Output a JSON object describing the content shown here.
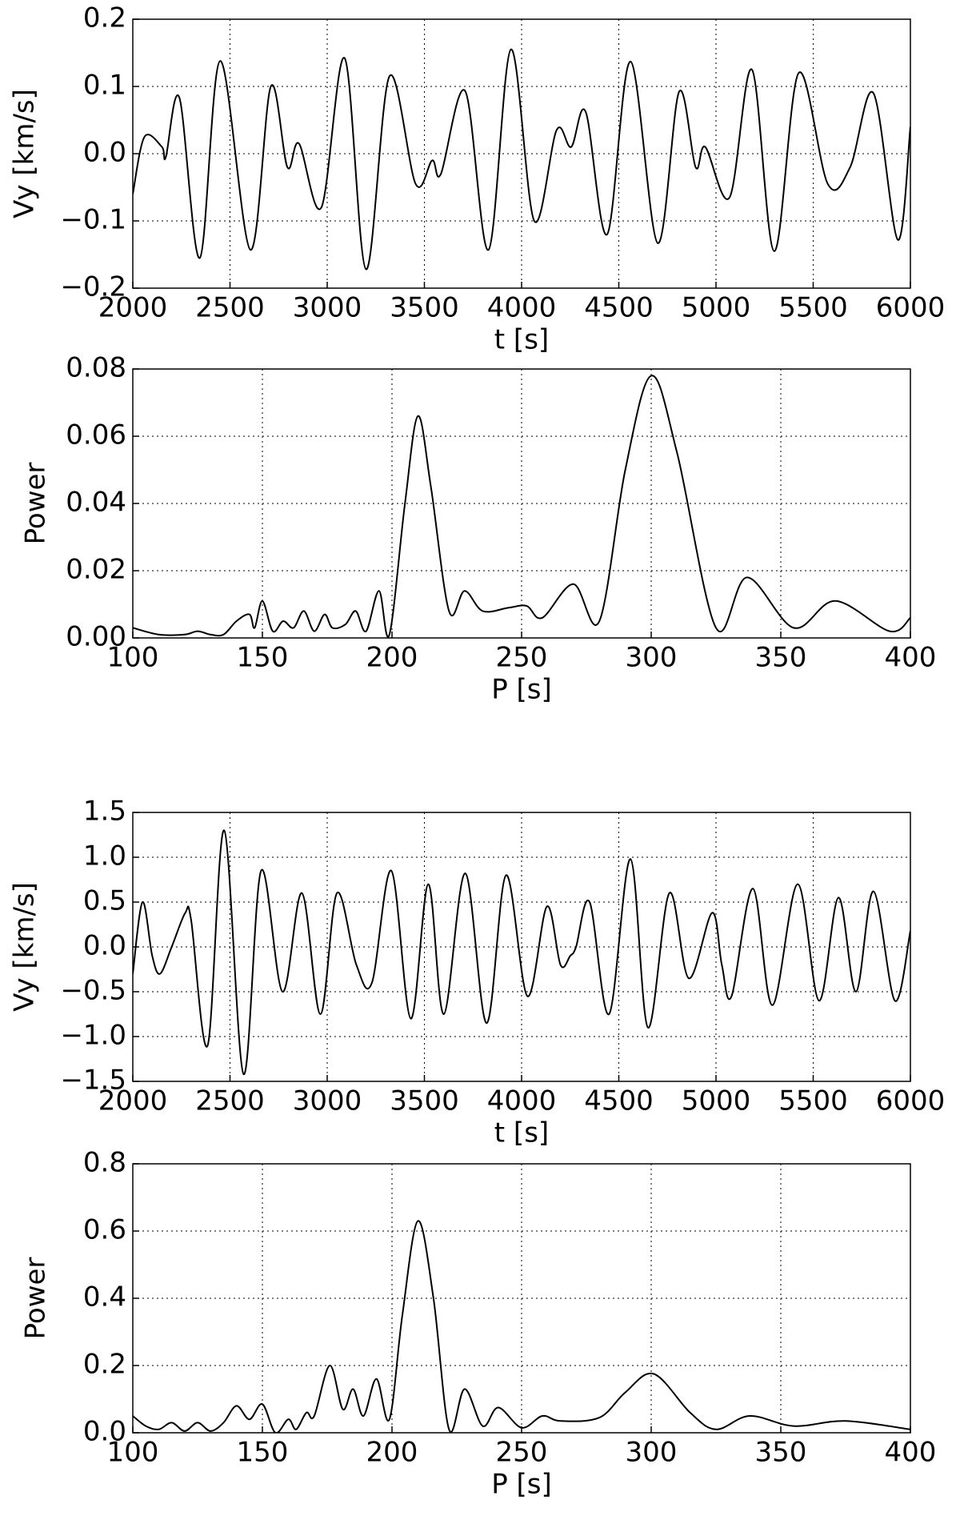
{
  "chart_data": [
    {
      "type": "line",
      "xlabel": "t [s]",
      "ylabel": "Vy [km/s]",
      "color": "#000000",
      "grid": true,
      "xlim": [
        2000,
        6000
      ],
      "ylim": [
        -0.2,
        0.2
      ],
      "xticks": [
        2000,
        2500,
        3000,
        3500,
        4000,
        4500,
        5000,
        5500,
        6000
      ],
      "yticks": [
        {
          "value": -0.2,
          "label": "−0.2"
        },
        {
          "value": -0.1,
          "label": "−0.1"
        },
        {
          "value": 0,
          "label": "0.0"
        },
        0.1,
        0.2
      ],
      "x": [
        2000,
        2060,
        2150,
        2170,
        2240,
        2345,
        2450,
        2605,
        2710,
        2795,
        2855,
        2970,
        3090,
        3200,
        3320,
        3455,
        3540,
        3585,
        3710,
        3830,
        3945,
        4065,
        4180,
        4255,
        4330,
        4440,
        4560,
        4700,
        4810,
        4895,
        4945,
        5070,
        5185,
        5300,
        5425,
        5575,
        5690,
        5810,
        5935,
        6000
      ],
      "values": [
        -0.06,
        0.025,
        0.01,
        -0.005,
        0.083,
        -0.155,
        0.138,
        -0.143,
        0.1,
        -0.02,
        0.015,
        -0.08,
        0.142,
        -0.172,
        0.115,
        -0.045,
        -0.01,
        -0.03,
        0.093,
        -0.143,
        0.155,
        -0.1,
        0.035,
        0.01,
        0.062,
        -0.12,
        0.137,
        -0.133,
        0.092,
        -0.02,
        0.01,
        -0.065,
        0.125,
        -0.145,
        0.12,
        -0.045,
        -0.02,
        0.09,
        -0.128,
        0.04
      ]
    },
    {
      "type": "line",
      "xlabel": "P [s]",
      "ylabel": "Power",
      "color": "#000000",
      "grid": true,
      "xlim": [
        100,
        400
      ],
      "ylim": [
        0,
        0.08
      ],
      "xticks": [
        100,
        150,
        200,
        250,
        300,
        350,
        400
      ],
      "yticks": [
        {
          "value": 0,
          "label": "0.00"
        },
        {
          "value": 0.02,
          "label": "0.02"
        },
        {
          "value": 0.04,
          "label": "0.04"
        },
        {
          "value": 0.06,
          "label": "0.06"
        },
        {
          "value": 0.08,
          "label": "0.08"
        }
      ],
      "x": [
        100,
        110,
        120,
        125,
        130,
        135,
        140,
        145,
        147,
        150,
        154,
        158,
        162,
        166,
        170,
        174,
        177,
        182,
        186,
        190,
        195,
        199,
        205,
        210,
        215,
        222,
        228,
        235,
        245,
        252,
        258,
        270,
        280,
        290,
        300,
        310,
        325,
        337,
        355,
        371,
        392,
        400
      ],
      "values": [
        0.003,
        0.001,
        0.001,
        0.002,
        0.001,
        0.001,
        0.005,
        0.007,
        0.003,
        0.011,
        0.002,
        0.005,
        0.003,
        0.008,
        0.002,
        0.007,
        0.003,
        0.004,
        0.008,
        0.002,
        0.014,
        0.001,
        0.04,
        0.066,
        0.045,
        0.008,
        0.014,
        0.008,
        0.009,
        0.0095,
        0.006,
        0.016,
        0.005,
        0.05,
        0.078,
        0.055,
        0.003,
        0.018,
        0.003,
        0.011,
        0.002,
        0.006
      ]
    },
    {
      "type": "line",
      "xlabel": "t [s]",
      "ylabel": "Vy [km/s]",
      "color": "#000000",
      "grid": true,
      "xlim": [
        2000,
        6000
      ],
      "ylim": [
        -1.5,
        1.5
      ],
      "xticks": [
        2000,
        2500,
        3000,
        3500,
        4000,
        4500,
        5000,
        5500,
        6000
      ],
      "yticks": [
        {
          "value": -1.5,
          "label": "−1.5"
        },
        {
          "value": -1,
          "label": "−1.0"
        },
        {
          "value": -0.5,
          "label": "−0.5"
        },
        {
          "value": 0,
          "label": "0.0"
        },
        0.5,
        {
          "value": 1,
          "label": "1.0"
        },
        1.5
      ],
      "x": [
        2000,
        2050,
        2100,
        2140,
        2200,
        2270,
        2300,
        2385,
        2470,
        2570,
        2660,
        2770,
        2870,
        2965,
        3050,
        3150,
        3230,
        3330,
        3430,
        3520,
        3600,
        3710,
        3820,
        3920,
        4030,
        4130,
        4200,
        4250,
        4280,
        4350,
        4450,
        4560,
        4650,
        4760,
        4860,
        4980,
        5030,
        5080,
        5190,
        5290,
        5420,
        5530,
        5630,
        5720,
        5810,
        5920,
        6000
      ],
      "values": [
        -0.3,
        0.5,
        -0.1,
        -0.3,
        0.0,
        0.38,
        0.3,
        -1.1,
        1.3,
        -1.42,
        0.85,
        -0.5,
        0.6,
        -0.75,
        0.6,
        -0.2,
        -0.4,
        0.85,
        -0.8,
        0.7,
        -0.75,
        0.82,
        -0.85,
        0.8,
        -0.55,
        0.45,
        -0.2,
        -0.1,
        0.0,
        0.5,
        -0.75,
        0.98,
        -0.9,
        0.6,
        -0.35,
        0.38,
        -0.2,
        -0.55,
        0.65,
        -0.65,
        0.7,
        -0.6,
        0.55,
        -0.5,
        0.62,
        -0.6,
        0.18
      ]
    },
    {
      "type": "line",
      "xlabel": "P [s]",
      "ylabel": "Power",
      "color": "#000000",
      "grid": true,
      "xlim": [
        100,
        400
      ],
      "ylim": [
        0,
        0.8
      ],
      "xticks": [
        100,
        150,
        200,
        250,
        300,
        350,
        400
      ],
      "yticks": [
        {
          "value": 0,
          "label": "0.0"
        },
        0.2,
        0.4,
        0.6,
        0.8
      ],
      "x": [
        100,
        105,
        110,
        115,
        120,
        125,
        130,
        135,
        140,
        145,
        150,
        155,
        160,
        163,
        167,
        170,
        176,
        181,
        185,
        189,
        194,
        199,
        204,
        210,
        216,
        222,
        228,
        235,
        241,
        250,
        258,
        265,
        280,
        290,
        301,
        315,
        325,
        338,
        355,
        375,
        400
      ],
      "values": [
        0.05,
        0.02,
        0.01,
        0.03,
        0.005,
        0.03,
        0.005,
        0.03,
        0.08,
        0.04,
        0.085,
        0.0,
        0.04,
        0.01,
        0.06,
        0.05,
        0.2,
        0.07,
        0.13,
        0.05,
        0.16,
        0.04,
        0.35,
        0.63,
        0.4,
        0.01,
        0.13,
        0.02,
        0.075,
        0.015,
        0.05,
        0.035,
        0.045,
        0.12,
        0.175,
        0.06,
        0.01,
        0.05,
        0.02,
        0.035,
        0.01
      ]
    }
  ]
}
